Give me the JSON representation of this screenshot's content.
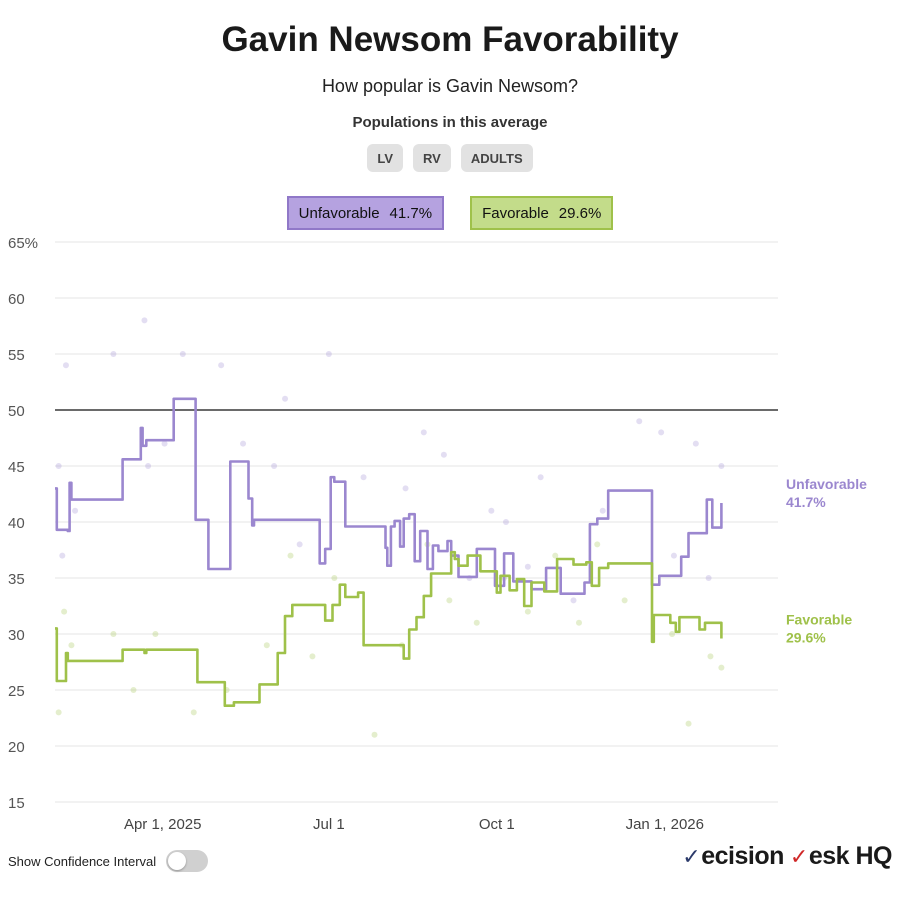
{
  "header": {
    "title": "Gavin Newsom Favorability",
    "subtitle": "How popular is Gavin Newsom?",
    "populations_label": "Populations in this average",
    "populations": [
      "LV",
      "RV",
      "ADULTS"
    ]
  },
  "legend": {
    "unfavorable_label": "Unfavorable",
    "unfavorable_value": "41.7%",
    "favorable_label": "Favorable",
    "favorable_value": "29.6%"
  },
  "footer": {
    "toggle_label": "Show Confidence Interval",
    "brand_part1": "ecision",
    "brand_part2": "esk HQ"
  },
  "colors": {
    "unfavorable": "#9b87cf",
    "favorable": "#9fc14a",
    "grid": "#e6e6e6",
    "reference_line": "#111111"
  },
  "chart_data": {
    "type": "line",
    "ylim": [
      15,
      65
    ],
    "yticks": [
      15,
      20,
      25,
      30,
      35,
      40,
      45,
      50,
      55,
      60,
      65
    ],
    "ytick_labels": [
      "15",
      "20",
      "25",
      "30",
      "35",
      "40",
      "45",
      "50",
      "55",
      "60",
      "65%"
    ],
    "reference_line": 50,
    "xlim": [
      "2025-02-01",
      "2026-03-04"
    ],
    "xticks": [
      {
        "date": "2025-04-01",
        "label": "Apr 1, 2025"
      },
      {
        "date": "2025-07-01",
        "label": "Jul 1"
      },
      {
        "date": "2025-10-01",
        "label": "Oct 1"
      },
      {
        "date": "2026-01-01",
        "label": "Jan 1, 2026"
      }
    ],
    "series": [
      {
        "name": "Unfavorable",
        "end_value": 41.7,
        "end_label": "41.7%",
        "points": [
          [
            "2025-02-01",
            43.0
          ],
          [
            "2025-02-02",
            39.3
          ],
          [
            "2025-02-08",
            39.2
          ],
          [
            "2025-02-09",
            43.5
          ],
          [
            "2025-02-10",
            42.0
          ],
          [
            "2025-03-10",
            45.6
          ],
          [
            "2025-03-20",
            48.4
          ],
          [
            "2025-03-21",
            46.8
          ],
          [
            "2025-03-23",
            47.3
          ],
          [
            "2025-04-07",
            51.0
          ],
          [
            "2025-04-19",
            40.2
          ],
          [
            "2025-04-26",
            35.8
          ],
          [
            "2025-05-08",
            45.4
          ],
          [
            "2025-05-18",
            42.1
          ],
          [
            "2025-05-20",
            39.7
          ],
          [
            "2025-05-21",
            40.2
          ],
          [
            "2025-06-26",
            36.3
          ],
          [
            "2025-06-29",
            37.6
          ],
          [
            "2025-07-02",
            44.0
          ],
          [
            "2025-07-04",
            43.6
          ],
          [
            "2025-07-10",
            39.6
          ],
          [
            "2025-08-01",
            37.7
          ],
          [
            "2025-08-02",
            36.1
          ],
          [
            "2025-08-04",
            39.6
          ],
          [
            "2025-08-06",
            40.1
          ],
          [
            "2025-08-09",
            37.8
          ],
          [
            "2025-08-11",
            40.3
          ],
          [
            "2025-08-14",
            40.7
          ],
          [
            "2025-08-17",
            36.5
          ],
          [
            "2025-08-20",
            39.2
          ],
          [
            "2025-08-24",
            35.8
          ],
          [
            "2025-08-27",
            37.9
          ],
          [
            "2025-08-30",
            37.4
          ],
          [
            "2025-09-04",
            38.3
          ],
          [
            "2025-09-06",
            37.0
          ],
          [
            "2025-09-10",
            35.1
          ],
          [
            "2025-09-20",
            37.6
          ],
          [
            "2025-09-30",
            34.3
          ],
          [
            "2025-10-05",
            37.2
          ],
          [
            "2025-10-10",
            34.7
          ],
          [
            "2025-10-20",
            34.0
          ],
          [
            "2025-10-28",
            35.9
          ],
          [
            "2025-11-05",
            33.6
          ],
          [
            "2025-11-18",
            34.6
          ],
          [
            "2025-11-21",
            39.8
          ],
          [
            "2025-11-25",
            40.3
          ],
          [
            "2025-12-01",
            42.8
          ],
          [
            "2025-12-25",
            34.4
          ],
          [
            "2025-12-29",
            35.2
          ],
          [
            "2026-01-10",
            36.9
          ],
          [
            "2026-01-14",
            39.0
          ],
          [
            "2026-01-24",
            42.0
          ],
          [
            "2026-01-27",
            39.5
          ],
          [
            "2026-02-01",
            41.7
          ]
        ]
      },
      {
        "name": "Favorable",
        "end_value": 29.6,
        "end_label": "29.6%",
        "points": [
          [
            "2025-02-01",
            30.5
          ],
          [
            "2025-02-02",
            25.8
          ],
          [
            "2025-02-07",
            28.3
          ],
          [
            "2025-02-08",
            27.6
          ],
          [
            "2025-03-10",
            28.6
          ],
          [
            "2025-03-22",
            28.3
          ],
          [
            "2025-03-23",
            28.6
          ],
          [
            "2025-04-20",
            25.7
          ],
          [
            "2025-05-05",
            23.6
          ],
          [
            "2025-05-10",
            23.9
          ],
          [
            "2025-05-24",
            25.5
          ],
          [
            "2025-06-03",
            28.3
          ],
          [
            "2025-06-07",
            31.6
          ],
          [
            "2025-06-11",
            32.6
          ],
          [
            "2025-06-29",
            31.2
          ],
          [
            "2025-07-03",
            32.6
          ],
          [
            "2025-07-07",
            34.4
          ],
          [
            "2025-07-10",
            33.3
          ],
          [
            "2025-07-17",
            33.7
          ],
          [
            "2025-07-20",
            29.0
          ],
          [
            "2025-08-11",
            27.8
          ],
          [
            "2025-08-14",
            30.4
          ],
          [
            "2025-08-18",
            31.5
          ],
          [
            "2025-08-22",
            33.4
          ],
          [
            "2025-08-26",
            35.4
          ],
          [
            "2025-09-06",
            37.3
          ],
          [
            "2025-09-08",
            36.7
          ],
          [
            "2025-09-10",
            36.1
          ],
          [
            "2025-09-15",
            37.0
          ],
          [
            "2025-09-22",
            35.6
          ],
          [
            "2025-10-01",
            33.7
          ],
          [
            "2025-10-03",
            35.2
          ],
          [
            "2025-10-08",
            33.9
          ],
          [
            "2025-10-12",
            34.9
          ],
          [
            "2025-10-16",
            32.5
          ],
          [
            "2025-10-20",
            34.6
          ],
          [
            "2025-10-27",
            33.8
          ],
          [
            "2025-11-03",
            36.7
          ],
          [
            "2025-11-12",
            36.2
          ],
          [
            "2025-11-19",
            36.4
          ],
          [
            "2025-11-22",
            34.3
          ],
          [
            "2025-11-26",
            35.9
          ],
          [
            "2025-12-01",
            36.3
          ],
          [
            "2025-12-25",
            29.3
          ],
          [
            "2025-12-26",
            31.7
          ],
          [
            "2026-01-04",
            31.0
          ],
          [
            "2026-01-07",
            30.2
          ],
          [
            "2026-01-09",
            31.5
          ],
          [
            "2026-01-20",
            30.4
          ],
          [
            "2026-01-23",
            31.0
          ],
          [
            "2026-02-01",
            29.6
          ]
        ]
      }
    ],
    "poll_dots": [
      {
        "series": "Unfavorable",
        "points": [
          [
            "2025-02-03",
            45
          ],
          [
            "2025-02-05",
            37
          ],
          [
            "2025-02-07",
            54
          ],
          [
            "2025-02-12",
            41
          ],
          [
            "2025-03-05",
            55
          ],
          [
            "2025-03-22",
            58
          ],
          [
            "2025-03-24",
            45
          ],
          [
            "2025-04-02",
            47
          ],
          [
            "2025-04-12",
            55
          ],
          [
            "2025-05-03",
            54
          ],
          [
            "2025-05-15",
            47
          ],
          [
            "2025-06-01",
            45
          ],
          [
            "2025-06-07",
            51
          ],
          [
            "2025-06-15",
            38
          ],
          [
            "2025-07-01",
            55
          ],
          [
            "2025-07-20",
            44
          ],
          [
            "2025-08-12",
            43
          ],
          [
            "2025-08-22",
            48
          ],
          [
            "2025-09-02",
            46
          ],
          [
            "2025-09-16",
            35
          ],
          [
            "2025-09-28",
            41
          ],
          [
            "2025-10-06",
            40
          ],
          [
            "2025-10-18",
            36
          ],
          [
            "2025-10-25",
            44
          ],
          [
            "2025-11-12",
            33
          ],
          [
            "2025-11-28",
            41
          ],
          [
            "2025-12-18",
            49
          ],
          [
            "2025-12-30",
            48
          ],
          [
            "2026-01-06",
            37
          ],
          [
            "2026-01-18",
            47
          ],
          [
            "2026-01-25",
            35
          ],
          [
            "2026-02-01",
            45
          ]
        ]
      },
      {
        "series": "Favorable",
        "points": [
          [
            "2025-02-03",
            23
          ],
          [
            "2025-02-06",
            32
          ],
          [
            "2025-02-10",
            29
          ],
          [
            "2025-03-05",
            30
          ],
          [
            "2025-03-16",
            25
          ],
          [
            "2025-03-28",
            30
          ],
          [
            "2025-04-18",
            23
          ],
          [
            "2025-05-06",
            25
          ],
          [
            "2025-05-28",
            29
          ],
          [
            "2025-06-10",
            37
          ],
          [
            "2025-06-22",
            28
          ],
          [
            "2025-07-04",
            35
          ],
          [
            "2025-07-26",
            21
          ],
          [
            "2025-08-10",
            29
          ],
          [
            "2025-08-24",
            38
          ],
          [
            "2025-09-05",
            33
          ],
          [
            "2025-09-20",
            31
          ],
          [
            "2025-10-05",
            35
          ],
          [
            "2025-10-18",
            32
          ],
          [
            "2025-11-02",
            37
          ],
          [
            "2025-11-15",
            31
          ],
          [
            "2025-11-25",
            38
          ],
          [
            "2025-12-10",
            33
          ],
          [
            "2026-01-05",
            30
          ],
          [
            "2026-01-14",
            22
          ],
          [
            "2026-01-26",
            28
          ],
          [
            "2026-02-01",
            27
          ]
        ]
      }
    ]
  }
}
